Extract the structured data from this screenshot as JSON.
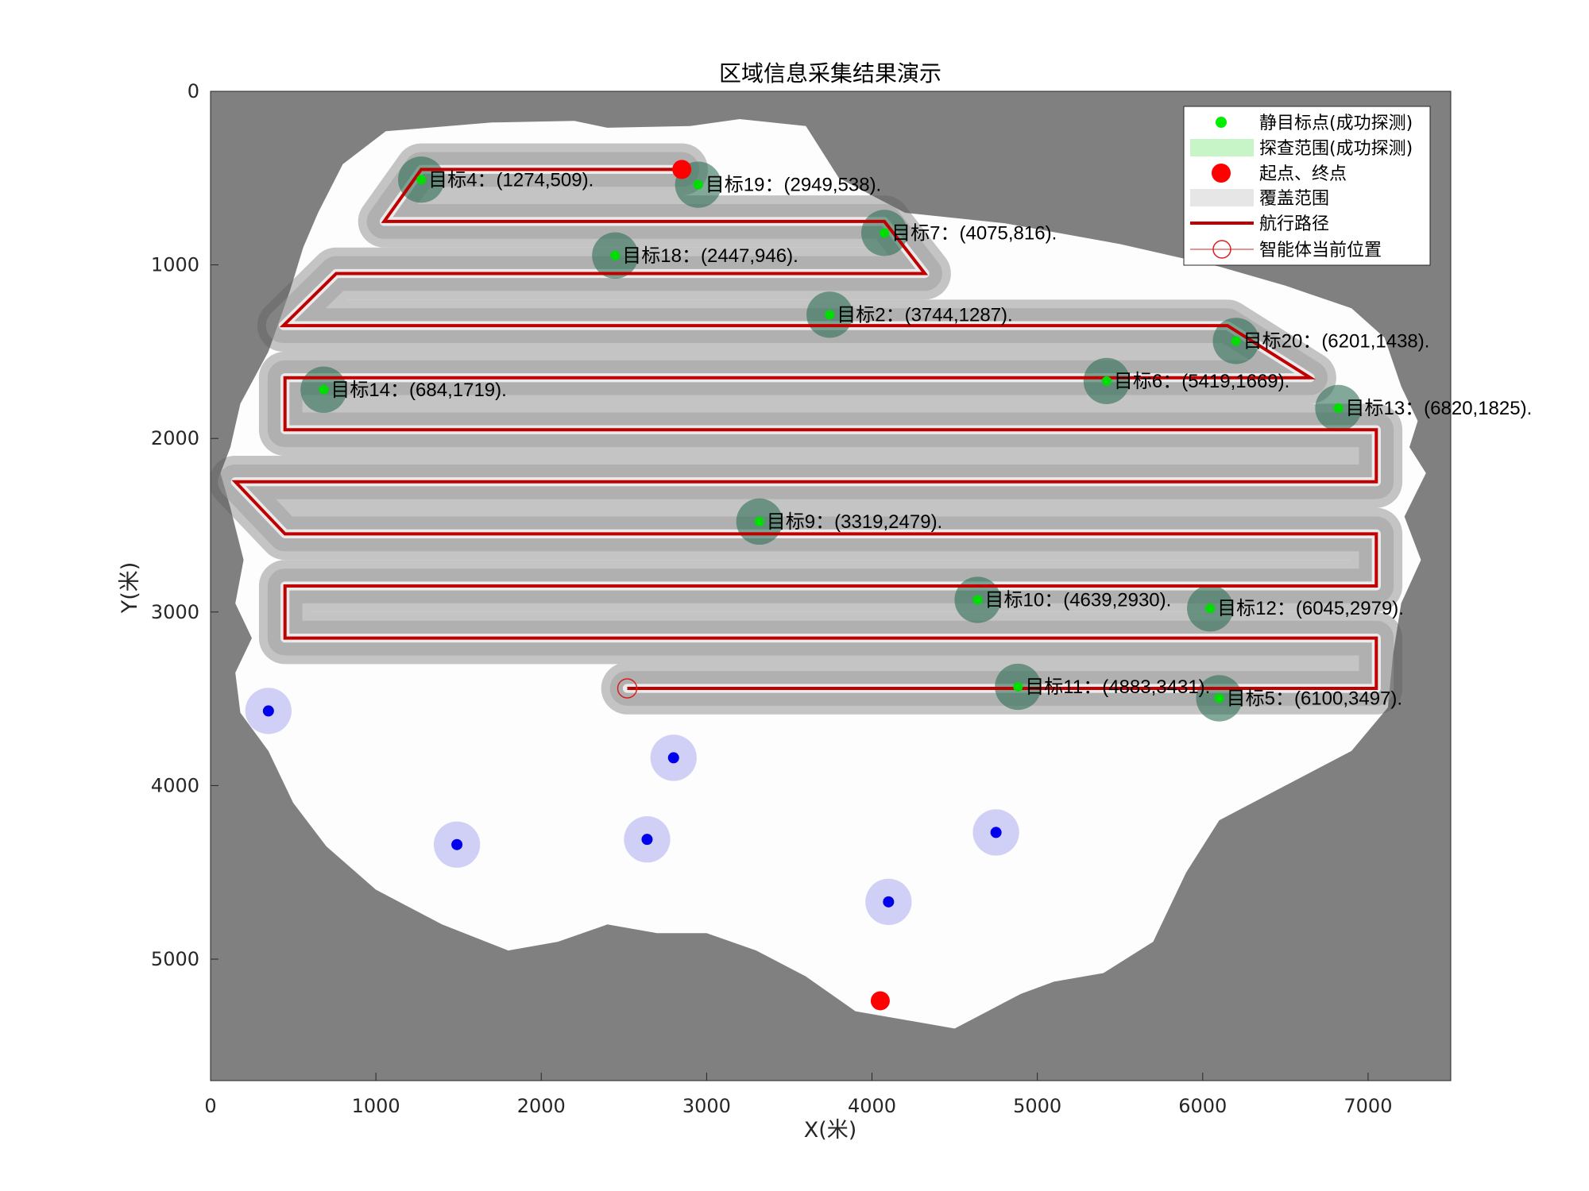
{
  "chart_data": {
    "type": "scatter",
    "title": "区域信息采集结果演示",
    "xlabel": "X(米)",
    "ylabel": "Y(米)",
    "xlim": [
      0,
      7500
    ],
    "ylim": [
      0,
      5700
    ],
    "y_axis_reversed": true,
    "xticks": [
      "0",
      "1000",
      "2000",
      "3000",
      "4000",
      "5000",
      "6000",
      "7000"
    ],
    "yticks": [
      "0",
      "1000",
      "2000",
      "3000",
      "4000",
      "5000"
    ],
    "xtick_values": [
      0,
      1000,
      2000,
      3000,
      4000,
      5000,
      6000,
      7000
    ],
    "ytick_values": [
      0,
      1000,
      2000,
      3000,
      4000,
      5000
    ],
    "grid": false,
    "legend_position": "top-right",
    "legend": [
      {
        "label": "静目标点(成功探测)",
        "kind": "green-dot"
      },
      {
        "label": "探查范围(成功探测)",
        "kind": "light-green-patch"
      },
      {
        "label": "起点、终点",
        "kind": "red-dot"
      },
      {
        "label": "覆盖范围",
        "kind": "gray-patch"
      },
      {
        "label": "航行路径",
        "kind": "red-line"
      },
      {
        "label": "智能体当前位置",
        "kind": "red-circle"
      }
    ],
    "colors": {
      "outside_area": "#808080",
      "inside_area": "#fdfdfd",
      "path": "#c00000",
      "detected_target": "#00dd00",
      "detected_range": "#2f6f55",
      "undetected_target": "#0000ee",
      "undetected_range": "#c8c8f5",
      "start_end": "#ff0000",
      "current_position": "#d62020"
    },
    "detected_targets": [
      {
        "id": 4,
        "x": 1274,
        "y": 509,
        "label": "目标4：(1274,509)."
      },
      {
        "id": 19,
        "x": 2949,
        "y": 538,
        "label": "目标19：(2949,538)."
      },
      {
        "id": 7,
        "x": 4075,
        "y": 816,
        "label": "目标7：(4075,816)."
      },
      {
        "id": 18,
        "x": 2447,
        "y": 946,
        "label": "目标18：(2447,946)."
      },
      {
        "id": 2,
        "x": 3744,
        "y": 1287,
        "label": "目标2：(3744,1287)."
      },
      {
        "id": 20,
        "x": 6201,
        "y": 1438,
        "label": "目标20：(6201,1438)."
      },
      {
        "id": 14,
        "x": 684,
        "y": 1719,
        "label": "目标14：(684,1719)."
      },
      {
        "id": 6,
        "x": 5419,
        "y": 1669,
        "label": "目标6：(5419,1669)."
      },
      {
        "id": 13,
        "x": 6820,
        "y": 1825,
        "label": "目标13：(6820,1825)."
      },
      {
        "id": 9,
        "x": 3319,
        "y": 2479,
        "label": "目标9：(3319,2479)."
      },
      {
        "id": 10,
        "x": 4639,
        "y": 2930,
        "label": "目标10：(4639,2930)."
      },
      {
        "id": 12,
        "x": 6045,
        "y": 2979,
        "label": "目标12：(6045,2979)."
      },
      {
        "id": 11,
        "x": 4883,
        "y": 3431,
        "label": "目标11：(4883,3431)."
      },
      {
        "id": 5,
        "x": 6100,
        "y": 3497,
        "label": "目标5：(6100,3497)."
      }
    ],
    "undetected_targets": [
      {
        "x": 350,
        "y": 3570
      },
      {
        "x": 2800,
        "y": 3840
      },
      {
        "x": 1490,
        "y": 4340
      },
      {
        "x": 2640,
        "y": 4310
      },
      {
        "x": 4750,
        "y": 4270
      },
      {
        "x": 4100,
        "y": 4670
      }
    ],
    "start_end_points": [
      {
        "x": 2850,
        "y": 450
      },
      {
        "x": 4050,
        "y": 5240
      }
    ],
    "current_position": {
      "x": 2520,
      "y": 3440
    },
    "detect_radius": 140,
    "coverage_swath_width": 300,
    "path": [
      [
        2850,
        450
      ],
      [
        1274,
        450
      ],
      [
        1050,
        750
      ],
      [
        4075,
        750
      ],
      [
        4320,
        1050
      ],
      [
        760,
        1050
      ],
      [
        440,
        1350
      ],
      [
        3744,
        1350
      ],
      [
        6150,
        1350
      ],
      [
        6650,
        1650
      ],
      [
        450,
        1650
      ],
      [
        450,
        1950
      ],
      [
        7050,
        1950
      ],
      [
        7050,
        2250
      ],
      [
        150,
        2250
      ],
      [
        450,
        2550
      ],
      [
        7050,
        2550
      ],
      [
        7050,
        2850
      ],
      [
        450,
        2850
      ],
      [
        450,
        3150
      ],
      [
        7050,
        3150
      ],
      [
        7050,
        3440
      ],
      [
        2520,
        3440
      ]
    ],
    "boundary": [
      [
        650,
        700
      ],
      [
        800,
        420
      ],
      [
        1060,
        230
      ],
      [
        1700,
        180
      ],
      [
        2200,
        170
      ],
      [
        2400,
        210
      ],
      [
        2900,
        200
      ],
      [
        3200,
        160
      ],
      [
        3600,
        200
      ],
      [
        3800,
        500
      ],
      [
        4200,
        700
      ],
      [
        4800,
        760
      ],
      [
        5500,
        880
      ],
      [
        6100,
        1010
      ],
      [
        6500,
        1120
      ],
      [
        6900,
        1250
      ],
      [
        7100,
        1420
      ],
      [
        7200,
        1700
      ],
      [
        7300,
        1900
      ],
      [
        7250,
        2050
      ],
      [
        7350,
        2200
      ],
      [
        7220,
        2450
      ],
      [
        7320,
        2700
      ],
      [
        7200,
        2950
      ],
      [
        7150,
        3250
      ],
      [
        7120,
        3550
      ],
      [
        6900,
        3800
      ],
      [
        6500,
        4000
      ],
      [
        6100,
        4200
      ],
      [
        5900,
        4500
      ],
      [
        5700,
        4900
      ],
      [
        5400,
        5080
      ],
      [
        5100,
        5130
      ],
      [
        4900,
        5200
      ],
      [
        4700,
        5300
      ],
      [
        4500,
        5400
      ],
      [
        4200,
        5350
      ],
      [
        3900,
        5300
      ],
      [
        3600,
        5100
      ],
      [
        3300,
        4950
      ],
      [
        3000,
        4850
      ],
      [
        2700,
        4850
      ],
      [
        2400,
        4800
      ],
      [
        2100,
        4900
      ],
      [
        1800,
        4950
      ],
      [
        1400,
        4800
      ],
      [
        1000,
        4600
      ],
      [
        700,
        4350
      ],
      [
        500,
        4100
      ],
      [
        350,
        3800
      ],
      [
        180,
        3580
      ],
      [
        150,
        3350
      ],
      [
        250,
        3150
      ],
      [
        150,
        2950
      ],
      [
        200,
        2700
      ],
      [
        120,
        2400
      ],
      [
        60,
        2200
      ],
      [
        120,
        2050
      ],
      [
        180,
        1800
      ],
      [
        350,
        1500
      ],
      [
        480,
        1150
      ],
      [
        560,
        900
      ]
    ]
  }
}
